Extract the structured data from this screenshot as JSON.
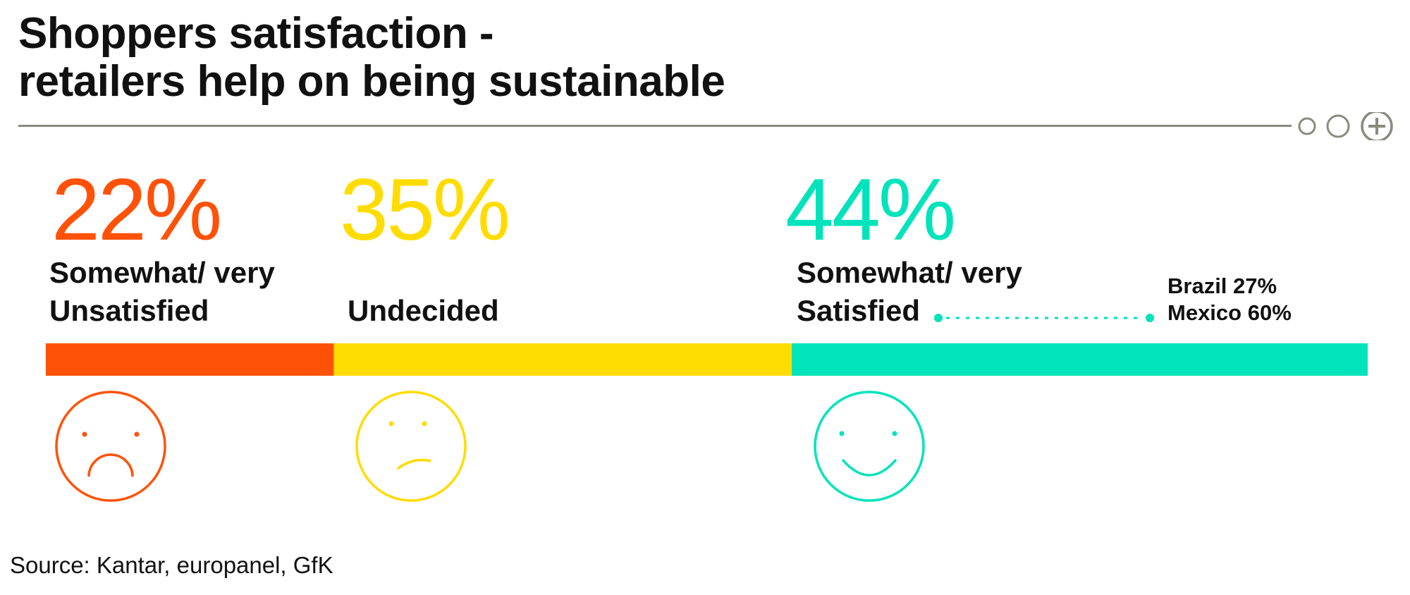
{
  "title": {
    "line1": "Shoppers satisfaction -",
    "line2": "retailers help on being sustainable"
  },
  "chart_data": {
    "type": "bar",
    "orientation": "horizontal-stacked",
    "categories": [
      "Somewhat/ very Unsatisfied",
      "Undecided",
      "Somewhat/ very Satisfied"
    ],
    "values": [
      22,
      35,
      44
    ],
    "value_labels": [
      "22%",
      "35%",
      "44%"
    ],
    "labels": [
      {
        "line1": "Somewhat/ very",
        "line2": "Unsatisfied"
      },
      {
        "line1": "Undecided",
        "line2": ""
      },
      {
        "line1": "Somewhat/ very",
        "line2": "Satisfied"
      }
    ],
    "colors": [
      "#ff5208",
      "#ffdc00",
      "#00e3bb"
    ],
    "faces": [
      "sad-face-icon",
      "neutral-face-icon",
      "happy-face-icon"
    ],
    "annotation": {
      "attached_to": "Somewhat/ very Satisfied",
      "lines": [
        "Brazil 27%",
        "Mexico 60%"
      ]
    },
    "grid": false,
    "legend": "none"
  },
  "header_icons": [
    "small-circle-icon",
    "medium-circle-icon",
    "plus-circle-icon"
  ],
  "source": "Source: Kantar, europanel, GfK"
}
